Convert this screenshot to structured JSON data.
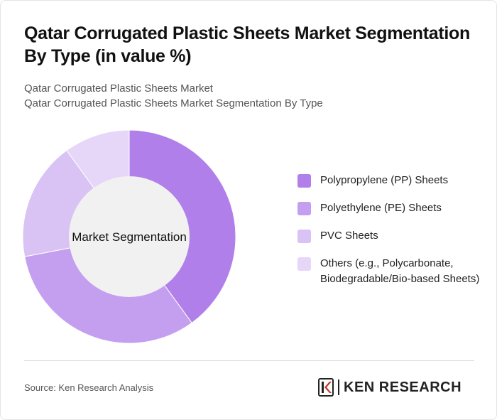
{
  "header": {
    "title": "Qatar Corrugated Plastic Sheets Market Segmentation By Type (in value %)",
    "subtitle_line1": "Qatar Corrugated Plastic Sheets Market",
    "subtitle_line2": "Qatar Corrugated Plastic Sheets Market Segmentation By Type"
  },
  "chart_data": {
    "type": "pie",
    "variant": "donut",
    "center_label": "Market Segmentation",
    "categories": [
      "Polypropylene (PP) Sheets",
      "Polyethylene (PE) Sheets",
      "PVC Sheets",
      "Others (e.g., Polycarbonate, Biodegradable/Bio-based Sheets)"
    ],
    "values": [
      40,
      32,
      18,
      10
    ],
    "colors": [
      "#b07fe9",
      "#c49ff0",
      "#d8c3f4",
      "#e6d6f8"
    ],
    "legend_position": "right"
  },
  "footer": {
    "source": "Source: Ken Research Analysis",
    "logo_text": "KEN RESEARCH"
  }
}
